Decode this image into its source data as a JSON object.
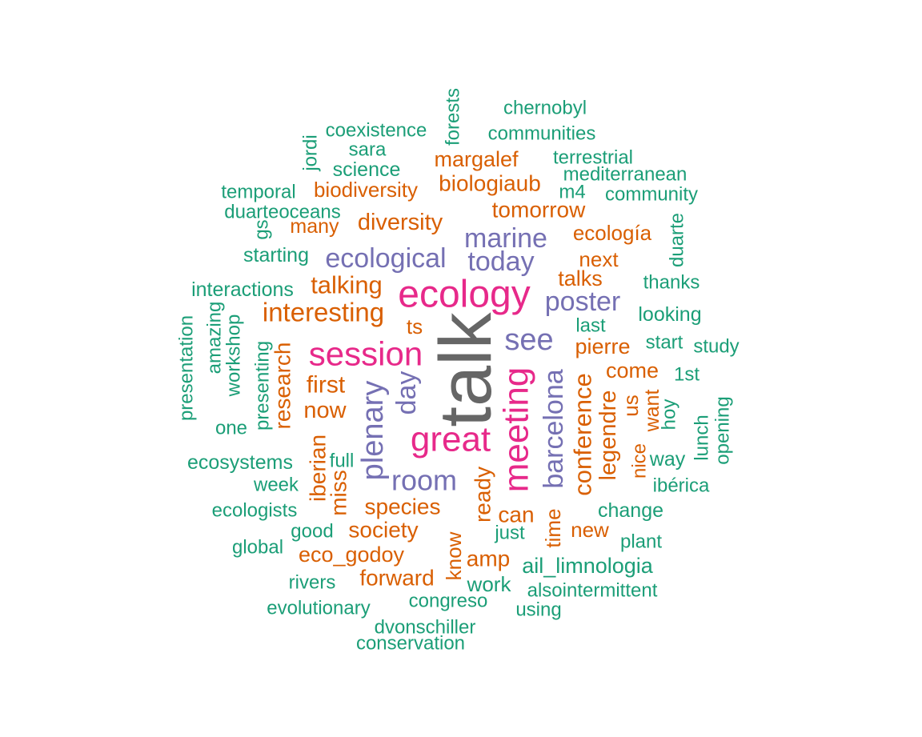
{
  "palette": {
    "green": "#1b9e77",
    "orange": "#d95f02",
    "purple": "#7570b3",
    "magenta": "#e7298a",
    "gray": "#666666"
  },
  "words": [
    {
      "text": "talk",
      "color": "gray"
    },
    {
      "text": "ecology",
      "color": "magenta"
    },
    {
      "text": "session",
      "color": "magenta"
    },
    {
      "text": "great",
      "color": "magenta"
    },
    {
      "text": "meeting",
      "color": "magenta"
    },
    {
      "text": "marine",
      "color": "purple"
    },
    {
      "text": "ecological",
      "color": "purple"
    },
    {
      "text": "today",
      "color": "purple"
    },
    {
      "text": "poster",
      "color": "purple"
    },
    {
      "text": "see",
      "color": "purple"
    },
    {
      "text": "plenary",
      "color": "purple"
    },
    {
      "text": "room",
      "color": "purple"
    },
    {
      "text": "day",
      "color": "purple"
    },
    {
      "text": "barcelona",
      "color": "purple"
    },
    {
      "text": "chernobyl",
      "color": "green"
    },
    {
      "text": "forests",
      "color": "green"
    },
    {
      "text": "coexistence",
      "color": "green"
    },
    {
      "text": "communities",
      "color": "green"
    },
    {
      "text": "jordi",
      "color": "green"
    },
    {
      "text": "sara",
      "color": "green"
    },
    {
      "text": "margalef",
      "color": "orange"
    },
    {
      "text": "terrestrial",
      "color": "green"
    },
    {
      "text": "science",
      "color": "green"
    },
    {
      "text": "mediterranean",
      "color": "green"
    },
    {
      "text": "biologiaub",
      "color": "orange"
    },
    {
      "text": "temporal",
      "color": "green"
    },
    {
      "text": "biodiversity",
      "color": "orange"
    },
    {
      "text": "m4",
      "color": "green"
    },
    {
      "text": "community",
      "color": "green"
    },
    {
      "text": "duarteoceans",
      "color": "green"
    },
    {
      "text": "tomorrow",
      "color": "orange"
    },
    {
      "text": "gs",
      "color": "green"
    },
    {
      "text": "many",
      "color": "orange"
    },
    {
      "text": "diversity",
      "color": "orange"
    },
    {
      "text": "ecología",
      "color": "orange"
    },
    {
      "text": "duarte",
      "color": "green"
    },
    {
      "text": "starting",
      "color": "green"
    },
    {
      "text": "next",
      "color": "orange"
    },
    {
      "text": "talking",
      "color": "orange"
    },
    {
      "text": "talks",
      "color": "orange"
    },
    {
      "text": "interactions",
      "color": "green"
    },
    {
      "text": "thanks",
      "color": "green"
    },
    {
      "text": "interesting",
      "color": "orange"
    },
    {
      "text": "looking",
      "color": "green"
    },
    {
      "text": "amazing",
      "color": "green"
    },
    {
      "text": "presentation",
      "color": "green"
    },
    {
      "text": "workshop",
      "color": "green"
    },
    {
      "text": "ts",
      "color": "orange"
    },
    {
      "text": "last",
      "color": "green"
    },
    {
      "text": "start",
      "color": "green"
    },
    {
      "text": "study",
      "color": "green"
    },
    {
      "text": "pierre",
      "color": "orange"
    },
    {
      "text": "presenting",
      "color": "green"
    },
    {
      "text": "research",
      "color": "orange"
    },
    {
      "text": "come",
      "color": "orange"
    },
    {
      "text": "1st",
      "color": "green"
    },
    {
      "text": "first",
      "color": "orange"
    },
    {
      "text": "us",
      "color": "orange"
    },
    {
      "text": "hoy",
      "color": "green"
    },
    {
      "text": "opening",
      "color": "green"
    },
    {
      "text": "want",
      "color": "orange"
    },
    {
      "text": "now",
      "color": "orange"
    },
    {
      "text": "legendre",
      "color": "orange"
    },
    {
      "text": "conference",
      "color": "orange"
    },
    {
      "text": "lunch",
      "color": "green"
    },
    {
      "text": "one",
      "color": "green"
    },
    {
      "text": "nice",
      "color": "orange"
    },
    {
      "text": "iberian",
      "color": "orange"
    },
    {
      "text": "ecosystems",
      "color": "green"
    },
    {
      "text": "full",
      "color": "green"
    },
    {
      "text": "way",
      "color": "green"
    },
    {
      "text": "miss",
      "color": "orange"
    },
    {
      "text": "ready",
      "color": "orange"
    },
    {
      "text": "week",
      "color": "green"
    },
    {
      "text": "ibérica",
      "color": "green"
    },
    {
      "text": "species",
      "color": "orange"
    },
    {
      "text": "ecologists",
      "color": "green"
    },
    {
      "text": "change",
      "color": "green"
    },
    {
      "text": "can",
      "color": "orange"
    },
    {
      "text": "society",
      "color": "orange"
    },
    {
      "text": "good",
      "color": "green"
    },
    {
      "text": "just",
      "color": "green"
    },
    {
      "text": "new",
      "color": "orange"
    },
    {
      "text": "time",
      "color": "orange"
    },
    {
      "text": "know",
      "color": "orange"
    },
    {
      "text": "global",
      "color": "green"
    },
    {
      "text": "plant",
      "color": "green"
    },
    {
      "text": "eco_godoy",
      "color": "orange"
    },
    {
      "text": "amp",
      "color": "orange"
    },
    {
      "text": "ail_limnologia",
      "color": "green"
    },
    {
      "text": "forward",
      "color": "orange"
    },
    {
      "text": "work",
      "color": "green"
    },
    {
      "text": "rivers",
      "color": "green"
    },
    {
      "text": "alsointermittent",
      "color": "green"
    },
    {
      "text": "congreso",
      "color": "green"
    },
    {
      "text": "evolutionary",
      "color": "green"
    },
    {
      "text": "using",
      "color": "green"
    },
    {
      "text": "dvonschiller",
      "color": "green"
    },
    {
      "text": "conservation",
      "color": "green"
    }
  ]
}
